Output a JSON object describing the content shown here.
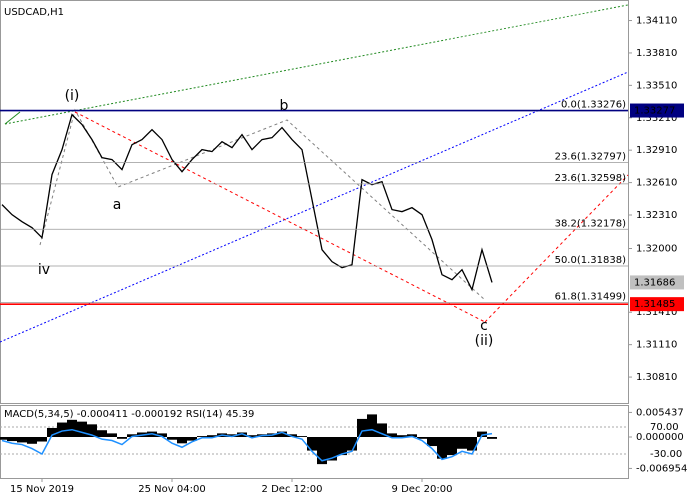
{
  "chart_data": [
    {
      "type": "line",
      "title": "USDCAD,H1",
      "color": "#000000",
      "categories": [
        null,
        null,
        null,
        null,
        "15 Nov 2019",
        null,
        null,
        null,
        null,
        null,
        null,
        null,
        null,
        null,
        null,
        null,
        null,
        "25 Nov 04:00",
        null,
        null,
        null,
        null,
        null,
        null,
        null,
        null,
        null,
        null,
        null,
        "2 Dec 12:00",
        null,
        null,
        null,
        null,
        null,
        null,
        null,
        null,
        null,
        null,
        null,
        null,
        "9 Dec 20:00",
        null,
        null,
        null,
        null,
        null,
        null,
        null
      ],
      "values": [
        1.32406,
        1.32313,
        1.32248,
        1.32193,
        1.321,
        1.32684,
        1.32915,
        1.33239,
        1.33147,
        1.33008,
        1.32841,
        1.32823,
        1.3273,
        1.32961,
        1.33008,
        1.331,
        1.33008,
        1.32823,
        1.32711,
        1.32823,
        1.32915,
        1.32897,
        1.32989,
        1.32934,
        1.33054,
        1.32915,
        1.33008,
        1.33026,
        1.33119,
        1.33008,
        1.32915,
        1.32452,
        1.31989,
        1.31878,
        1.31823,
        1.3185,
        1.32637,
        1.32591,
        1.32619,
        1.3236,
        1.32341,
        1.32378,
        1.32313,
        1.32082,
        1.31758,
        1.31711,
        1.31804,
        1.31619,
        1.31989,
        1.31686
      ],
      "ylim": [
        1.3057,
        1.343
      ],
      "yticks": [
        {
          "value": 1.3411,
          "label": "1.34110"
        },
        {
          "value": 1.3381,
          "label": "1.33810"
        },
        {
          "value": 1.3351,
          "label": "1.33510"
        },
        {
          "value": 1.3321,
          "label": "1.33210"
        },
        {
          "value": 1.3291,
          "label": "1.32910"
        },
        {
          "value": 1.3261,
          "label": "1.32610"
        },
        {
          "value": 1.3231,
          "label": "1.32310"
        },
        {
          "value": 1.32,
          "label": "1.32000"
        },
        {
          "value": 1.3141,
          "label": "1.31410"
        },
        {
          "value": 1.3111,
          "label": "1.31110"
        },
        {
          "value": 1.3081,
          "label": "1.30810"
        }
      ],
      "fib_levels": [
        {
          "value": 1.33276,
          "label": "0.0(1.33276)"
        },
        {
          "value": 1.32797,
          "label": "23.6(1.32797)"
        },
        {
          "value": 1.32598,
          "label": "23.6(1.32598)"
        },
        {
          "value": 1.32178,
          "label": "38.2(1.32178)"
        },
        {
          "value": 1.31838,
          "label": "50.0(1.31838)"
        },
        {
          "value": 1.31499,
          "label": "61.8(1.31499)"
        }
      ],
      "price_markers": [
        {
          "value": 1.33277,
          "color": "#000080",
          "line": true
        },
        {
          "value": 1.31686,
          "color": "#c0c0c0",
          "line": false
        },
        {
          "value": 1.31485,
          "color": "#ff0000",
          "line": true
        }
      ],
      "wave_labels": [
        {
          "text": "(i)",
          "color": "#ff0000"
        },
        {
          "text": "iv",
          "color": "#808080"
        },
        {
          "text": "a",
          "color": "#808080"
        },
        {
          "text": "b",
          "color": "#808080"
        },
        {
          "text": "c",
          "color": "#808080"
        },
        {
          "text": "(ii)",
          "color": "#ff0000"
        }
      ]
    },
    {
      "type": "macd",
      "title": "MACD(5,34,5) -0.000411 -0.000192 RSI(14) 45.39",
      "ylim": [
        -0.00907,
        0.00708
      ],
      "yticks": [
        0.005437,
        {
          "value": 0,
          "label": "0.000000"
        },
        -0.006954
      ],
      "y2lim": [
        -118.9,
        151.5
      ],
      "y2ticks": [
        {
          "value": 70,
          "label": "70.00"
        },
        {
          "value": -30,
          "label": "-30.00"
        }
      ],
      "series": [
        {
          "color": "#000000",
          "values": [
            -0.0006,
            -0.0009,
            -0.0012,
            -0.0015,
            -0.001,
            0.002,
            0.0032,
            0.0038,
            0.0034,
            0.0028,
            0.0015,
            0.0008,
            -0.0004,
            0.0006,
            0.001,
            0.0012,
            0.0008,
            -0.0006,
            -0.0014,
            -0.0008,
            0.0002,
            0.0004,
            0.0008,
            0.0006,
            0.001,
            0.0004,
            0.0006,
            0.0008,
            0.0012,
            0.0006,
            0.0002,
            -0.003,
            -0.006,
            -0.0052,
            -0.004,
            -0.003,
            0.004,
            0.005,
            0.003,
            0.0008,
            0.0004,
            0.0006,
            -0.0004,
            -0.002,
            -0.0048,
            -0.004,
            -0.0026,
            -0.003,
            0.0012,
            -0.000411
          ]
        },
        {
          "color": "#1e90ff",
          "axis": "y2",
          "values": [
            20,
            10,
            5,
            -10,
            -30,
            40,
            55,
            60,
            50,
            40,
            25,
            20,
            5,
            35,
            40,
            45,
            35,
            10,
            -5,
            15,
            30,
            30,
            40,
            35,
            45,
            30,
            38,
            40,
            50,
            35,
            25,
            -20,
            -55,
            -45,
            -30,
            -20,
            55,
            60,
            45,
            30,
            30,
            35,
            20,
            -10,
            -50,
            -40,
            -20,
            -30,
            40,
            45.39
          ]
        }
      ]
    }
  ]
}
